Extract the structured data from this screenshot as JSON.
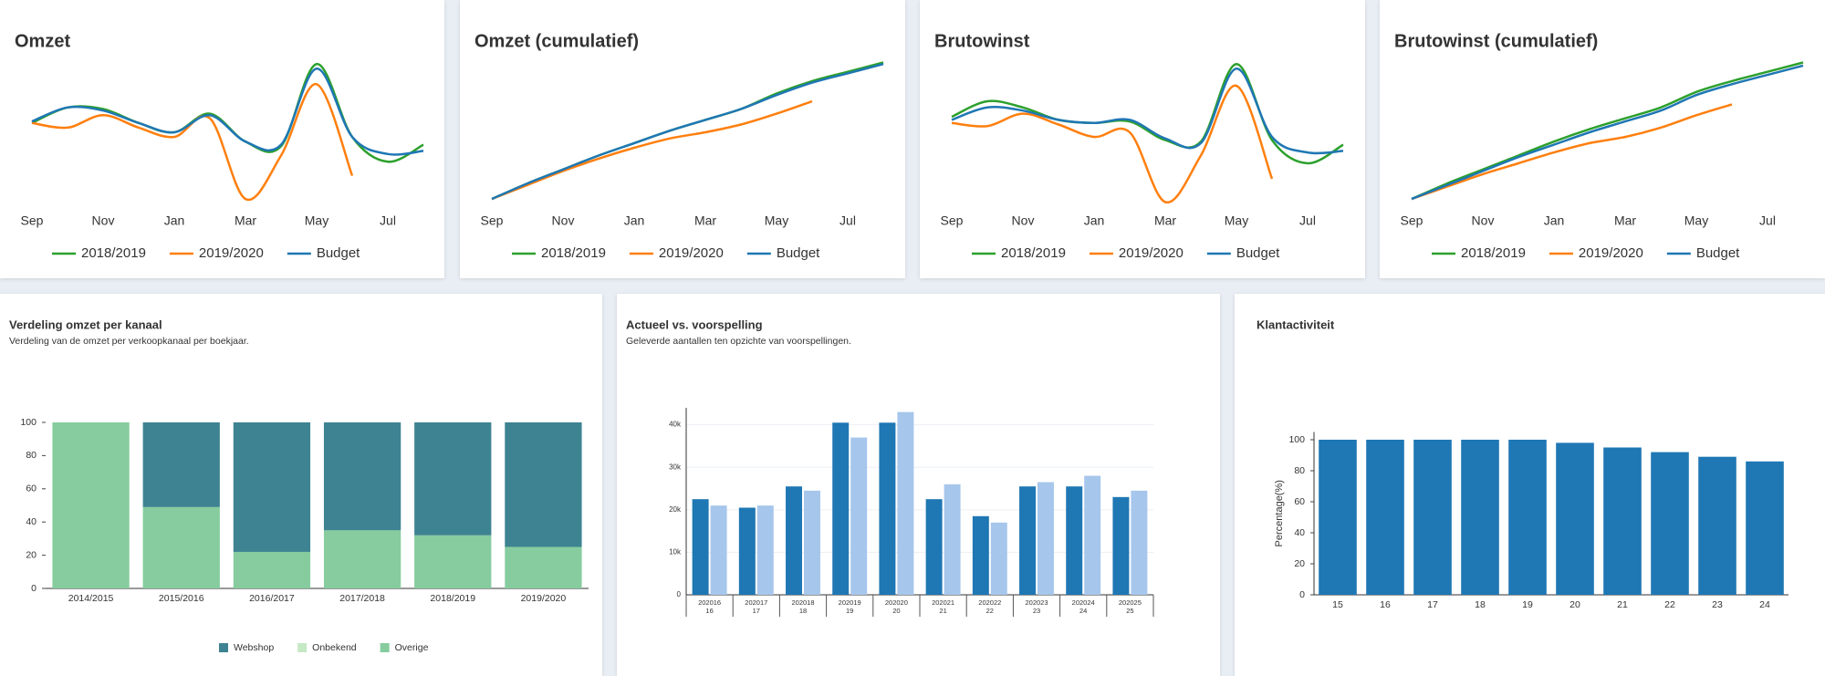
{
  "chart_data": [
    {
      "type": "line",
      "title": "Omzet",
      "categories": [
        "Sep",
        null,
        "Nov",
        null,
        "Jan",
        null,
        "Mar",
        null,
        "May",
        null,
        "Jul",
        null
      ],
      "ylim": [
        0,
        100
      ],
      "legend": "bottom",
      "series": [
        {
          "name": "2018/2019",
          "color": "#2ca02c",
          "values": [
            56,
            66,
            65,
            56,
            50,
            62,
            44,
            41,
            94,
            47,
            31,
            42
          ]
        },
        {
          "name": "2019/2020",
          "color": "#ff7f0e",
          "values": [
            56,
            53,
            61,
            53,
            47,
            59,
            7,
            35,
            81,
            22,
            null,
            null
          ]
        },
        {
          "name": "Budget",
          "color": "#1f77b4",
          "values": [
            57,
            66,
            64,
            56,
            50,
            61,
            44,
            42,
            91,
            47,
            36,
            38
          ]
        }
      ]
    },
    {
      "type": "line",
      "title": "Omzet (cumulatief)",
      "categories": [
        "Sep",
        null,
        "Nov",
        null,
        "Jan",
        null,
        "Mar",
        null,
        "May",
        null,
        "Jul",
        null
      ],
      "ylim": [
        0,
        100
      ],
      "legend": "bottom",
      "series": [
        {
          "name": "2018/2019",
          "color": "#2ca02c",
          "values": [
            7,
            17,
            26,
            35,
            43,
            51,
            58,
            65,
            75,
            83,
            89,
            95
          ]
        },
        {
          "name": "2019/2020",
          "color": "#ff7f0e",
          "values": [
            7,
            16,
            25,
            33,
            40,
            46,
            50,
            55,
            62,
            70,
            null,
            null
          ]
        },
        {
          "name": "Budget",
          "color": "#1f77b4",
          "values": [
            7,
            17,
            26,
            35,
            43,
            51,
            58,
            65,
            74,
            82,
            88,
            94
          ]
        }
      ]
    },
    {
      "type": "line",
      "title": "Brutowinst",
      "categories": [
        "Sep",
        null,
        "Nov",
        null,
        "Jan",
        null,
        "Mar",
        null,
        "May",
        null,
        "Jul",
        null
      ],
      "ylim": [
        0,
        100
      ],
      "legend": "bottom",
      "series": [
        {
          "name": "2018/2019",
          "color": "#2ca02c",
          "values": [
            60,
            70,
            66,
            58,
            56,
            57,
            45,
            44,
            94,
            45,
            30,
            42
          ]
        },
        {
          "name": "2019/2020",
          "color": "#ff7f0e",
          "values": [
            56,
            54,
            62,
            55,
            47,
            50,
            5,
            35,
            80,
            20,
            null,
            null
          ]
        },
        {
          "name": "Budget",
          "color": "#1f77b4",
          "values": [
            58,
            66,
            64,
            58,
            56,
            58,
            46,
            43,
            91,
            47,
            37,
            38
          ]
        }
      ]
    },
    {
      "type": "line",
      "title": "Brutowinst (cumulatief)",
      "categories": [
        "Sep",
        null,
        "Nov",
        null,
        "Jan",
        null,
        "Mar",
        null,
        "May",
        null,
        "Jul",
        null
      ],
      "ylim": [
        0,
        100
      ],
      "legend": "bottom",
      "series": [
        {
          "name": "2018/2019",
          "color": "#2ca02c",
          "values": [
            7,
            17,
            26,
            35,
            44,
            52,
            59,
            66,
            76,
            83,
            89,
            95
          ]
        },
        {
          "name": "2019/2020",
          "color": "#ff7f0e",
          "values": [
            7,
            15,
            23,
            30,
            37,
            43,
            47,
            53,
            61,
            68,
            null,
            null
          ]
        },
        {
          "name": "Budget",
          "color": "#1f77b4",
          "values": [
            7,
            16,
            25,
            34,
            42,
            50,
            57,
            64,
            74,
            81,
            87,
            93
          ]
        }
      ]
    },
    {
      "type": "bar",
      "stacked": true,
      "title": "Verdeling omzet per kanaal",
      "subtitle": "Verdeling van de omzet per verkoopkanaal per boekjaar.",
      "categories": [
        "2014/2015",
        "2015/2016",
        "2016/2017",
        "2017/2018",
        "2018/2019",
        "2019/2020"
      ],
      "series": [
        {
          "name": "Webshop",
          "color": "#3e8391",
          "values": [
            0,
            51,
            78,
            65,
            68,
            75
          ]
        },
        {
          "name": "Onbekend",
          "color": "#c5e8c5",
          "values": [
            0,
            0,
            0,
            0,
            0,
            0
          ]
        },
        {
          "name": "Overige",
          "color": "#86cc9f",
          "values": [
            100,
            49,
            22,
            35,
            32,
            25
          ]
        }
      ],
      "ylim": [
        0,
        100
      ],
      "yticks": [
        0,
        20,
        40,
        60,
        80,
        100
      ],
      "legend": "bottom"
    },
    {
      "type": "bar",
      "title": "Actueel vs. voorspelling",
      "subtitle": "Geleverde aantallen ten opzichte van voorspellingen.",
      "categories": [
        "202016",
        "202017",
        "202018",
        "202019",
        "202020",
        "202021",
        "202022",
        "202023",
        "202024",
        "202025"
      ],
      "sub_categories": [
        "16",
        "17",
        "18",
        "19",
        "20",
        "21",
        "22",
        "23",
        "24",
        "25"
      ],
      "series": [
        {
          "color": "#1f77b4",
          "values": [
            22500,
            20500,
            25500,
            40500,
            40500,
            22500,
            18500,
            25500,
            25500,
            23000
          ]
        },
        {
          "color": "#a6c6ec",
          "values": [
            21000,
            21000,
            24500,
            37000,
            43000,
            26000,
            17000,
            26500,
            28000,
            24500
          ]
        }
      ],
      "ylim": [
        0,
        44000
      ],
      "yticks": [
        0,
        {
          "value": 10000,
          "label": "10k"
        },
        {
          "value": 20000,
          "label": "20k"
        },
        {
          "value": 30000,
          "label": "30k"
        },
        {
          "value": 40000,
          "label": "40k"
        }
      ],
      "grid": true
    },
    {
      "type": "bar",
      "title": "Klantactiviteit",
      "categories": [
        "15",
        "16",
        "17",
        "18",
        "19",
        "20",
        "21",
        "22",
        "23",
        "24"
      ],
      "values": [
        100,
        100,
        100,
        100,
        100,
        98,
        95,
        92,
        89,
        86
      ],
      "color": "#1f77b4",
      "ylabel": "Percentage(%)",
      "ylim": [
        0,
        105
      ],
      "yticks": [
        0,
        20,
        40,
        60,
        80,
        100
      ]
    }
  ]
}
